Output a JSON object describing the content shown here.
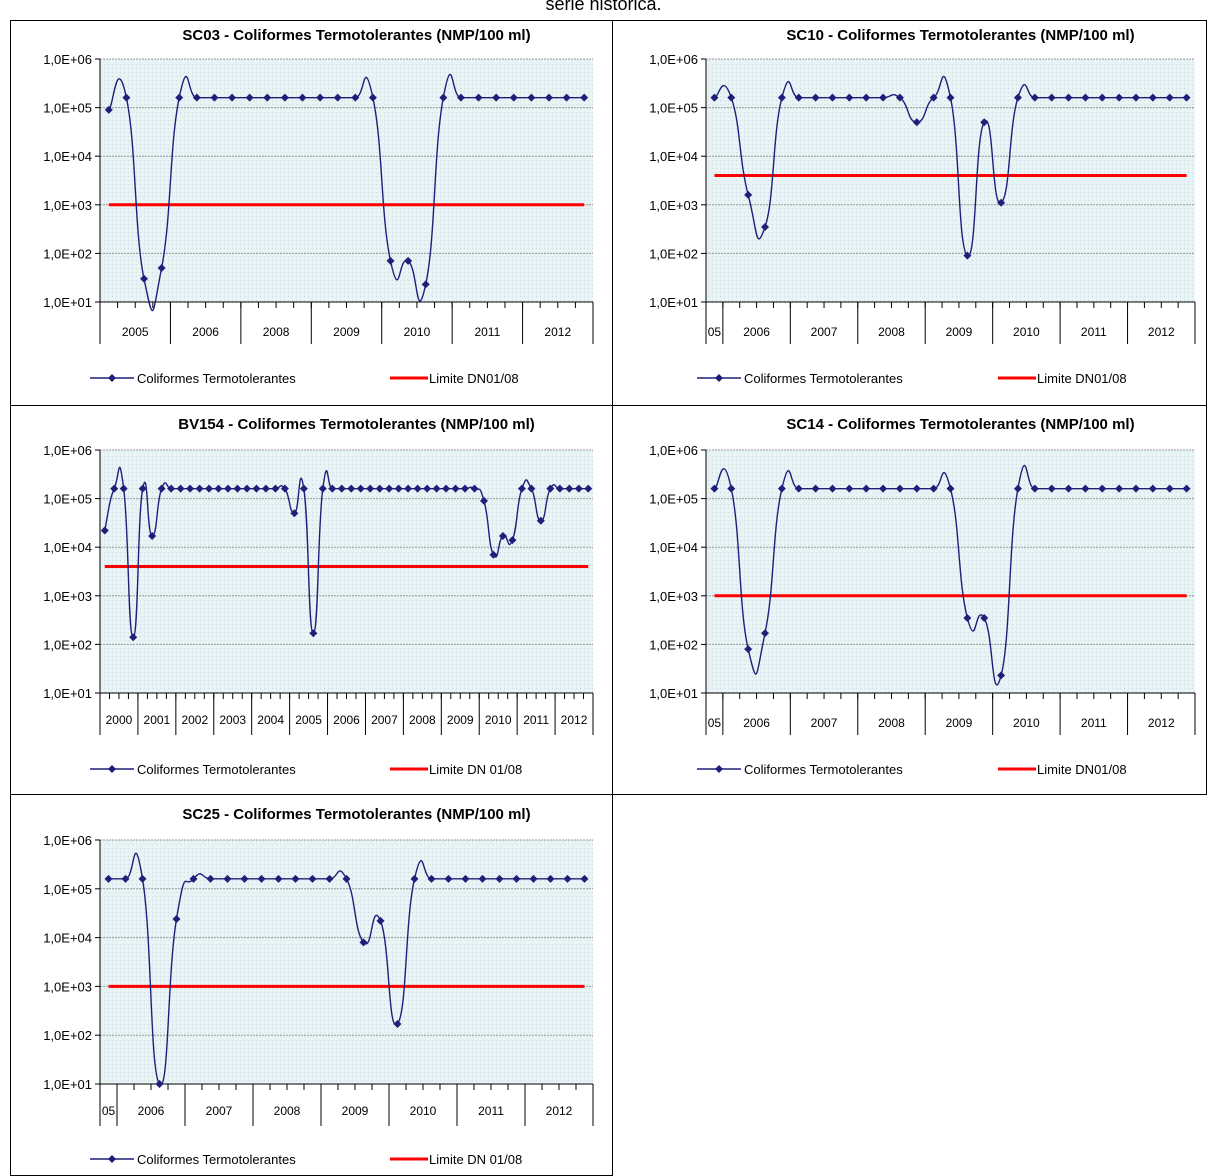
{
  "page": {
    "heading_fragment": "série histórica."
  },
  "colors": {
    "series": "#1F1F7A",
    "limit": "#FF0000",
    "grid": "#9A9A9A",
    "plot_bg": "#E8F3F5"
  },
  "chart_data": [
    {
      "type": "line",
      "title": "SC03 - Coliformes Termotolerantes (NMP/100 ml)",
      "yscale": "log",
      "ylim": [
        10,
        1000000
      ],
      "yticks": [
        "1,0E+01",
        "1,0E+02",
        "1,0E+03",
        "1,0E+04",
        "1,0E+05",
        "1,0E+06"
      ],
      "xgroups": [
        {
          "label": "2005",
          "n": 4
        },
        {
          "label": "2006",
          "n": 4
        },
        {
          "label": "2008",
          "n": 4
        },
        {
          "label": "2009",
          "n": 4
        },
        {
          "label": "2010",
          "n": 4
        },
        {
          "label": "2011",
          "n": 4
        },
        {
          "label": "2012",
          "n": 4
        }
      ],
      "series": [
        {
          "name": "Coliformes Termotolerantes",
          "values": [
            90000,
            160000,
            30,
            50,
            160000,
            160000,
            160000,
            160000,
            160000,
            160000,
            160000,
            160000,
            160000,
            160000,
            160000,
            160000,
            70,
            70,
            23,
            160000,
            160000,
            160000,
            160000,
            160000,
            160000,
            160000,
            160000,
            160000
          ]
        },
        {
          "name": "Limite DN01/08",
          "constant": 1000
        }
      ],
      "legend": "bottom"
    },
    {
      "type": "line",
      "title": "SC10 - Coliformes Termotolerantes (NMP/100 ml)",
      "yscale": "log",
      "ylim": [
        10,
        1000000
      ],
      "yticks": [
        "1,0E+01",
        "1,0E+02",
        "1,0E+03",
        "1,0E+04",
        "1,0E+05",
        "1,0E+06"
      ],
      "xgroups": [
        {
          "label": "05",
          "n": 1
        },
        {
          "label": "2006",
          "n": 4
        },
        {
          "label": "2007",
          "n": 4
        },
        {
          "label": "2008",
          "n": 4
        },
        {
          "label": "2009",
          "n": 4
        },
        {
          "label": "2010",
          "n": 4
        },
        {
          "label": "2011",
          "n": 4
        },
        {
          "label": "2012",
          "n": 4
        }
      ],
      "series": [
        {
          "name": "Coliformes Termotolerantes",
          "values": [
            160000,
            160000,
            1600,
            350,
            160000,
            160000,
            160000,
            160000,
            160000,
            160000,
            160000,
            160000,
            50000,
            160000,
            160000,
            90,
            50000,
            1100,
            160000,
            160000,
            160000,
            160000,
            160000,
            160000,
            160000,
            160000,
            160000,
            160000,
            160000
          ]
        },
        {
          "name": "Limite DN01/08",
          "constant": 4000
        }
      ],
      "legend": "bottom"
    },
    {
      "type": "line",
      "title": "BV154 - Coliformes Termotolerantes (NMP/100 ml)",
      "yscale": "log",
      "ylim": [
        10,
        1000000
      ],
      "yticks": [
        "1,0E+01",
        "1,0E+02",
        "1,0E+03",
        "1,0E+04",
        "1,0E+05",
        "1,0E+06"
      ],
      "xgroups": [
        {
          "label": "2000",
          "n": 4
        },
        {
          "label": "2001",
          "n": 4
        },
        {
          "label": "2002",
          "n": 4
        },
        {
          "label": "2003",
          "n": 4
        },
        {
          "label": "2004",
          "n": 4
        },
        {
          "label": "2005",
          "n": 4
        },
        {
          "label": "2006",
          "n": 4
        },
        {
          "label": "2007",
          "n": 4
        },
        {
          "label": "2008",
          "n": 4
        },
        {
          "label": "2009",
          "n": 4
        },
        {
          "label": "2010",
          "n": 4
        },
        {
          "label": "2011",
          "n": 4
        },
        {
          "label": "2012",
          "n": 4
        }
      ],
      "series": [
        {
          "name": "Coliformes Termotolerantes",
          "values": [
            22000,
            160000,
            160000,
            140,
            160000,
            17000,
            160000,
            160000,
            160000,
            160000,
            160000,
            160000,
            160000,
            160000,
            160000,
            160000,
            160000,
            160000,
            160000,
            160000,
            50000,
            160000,
            170,
            160000,
            160000,
            160000,
            160000,
            160000,
            160000,
            160000,
            160000,
            160000,
            160000,
            160000,
            160000,
            160000,
            160000,
            160000,
            160000,
            160000,
            90000,
            7000,
            17000,
            14000,
            160000,
            160000,
            35000,
            160000,
            160000,
            160000,
            160000,
            160000
          ]
        },
        {
          "name": "Limite DN 01/08",
          "constant": 4000
        }
      ],
      "legend": "bottom"
    },
    {
      "type": "line",
      "title": "SC14 - Coliformes Termotolerantes (NMP/100 ml)",
      "yscale": "log",
      "ylim": [
        10,
        1000000
      ],
      "yticks": [
        "1,0E+01",
        "1,0E+02",
        "1,0E+03",
        "1,0E+04",
        "1,0E+05",
        "1,0E+06"
      ],
      "xgroups": [
        {
          "label": "05",
          "n": 1
        },
        {
          "label": "2006",
          "n": 4
        },
        {
          "label": "2007",
          "n": 4
        },
        {
          "label": "2008",
          "n": 4
        },
        {
          "label": "2009",
          "n": 4
        },
        {
          "label": "2010",
          "n": 4
        },
        {
          "label": "2011",
          "n": 4
        },
        {
          "label": "2012",
          "n": 4
        }
      ],
      "series": [
        {
          "name": "Coliformes Termotolerantes",
          "values": [
            160000,
            160000,
            80,
            170,
            160000,
            160000,
            160000,
            160000,
            160000,
            160000,
            160000,
            160000,
            160000,
            160000,
            160000,
            350,
            350,
            23,
            160000,
            160000,
            160000,
            160000,
            160000,
            160000,
            160000,
            160000,
            160000,
            160000,
            160000
          ]
        },
        {
          "name": "Limite DN01/08",
          "constant": 1000
        }
      ],
      "legend": "bottom"
    },
    {
      "type": "line",
      "title": "SC25 - Coliformes Termotolerantes (NMP/100 ml)",
      "yscale": "log",
      "ylim": [
        10,
        1000000
      ],
      "yticks": [
        "1,0E+01",
        "1,0E+02",
        "1,0E+03",
        "1,0E+04",
        "1,0E+05",
        "1,0E+06"
      ],
      "xgroups": [
        {
          "label": "05",
          "n": 1
        },
        {
          "label": "2006",
          "n": 4
        },
        {
          "label": "2007",
          "n": 4
        },
        {
          "label": "2008",
          "n": 4
        },
        {
          "label": "2009",
          "n": 4
        },
        {
          "label": "2010",
          "n": 4
        },
        {
          "label": "2011",
          "n": 4
        },
        {
          "label": "2012",
          "n": 4
        }
      ],
      "series": [
        {
          "name": "Coliformes Termotolerantes",
          "values": [
            160000,
            160000,
            160000,
            10,
            24000,
            160000,
            160000,
            160000,
            160000,
            160000,
            160000,
            160000,
            160000,
            160000,
            160000,
            8000,
            22000,
            170,
            160000,
            160000,
            160000,
            160000,
            160000,
            160000,
            160000,
            160000,
            160000,
            160000,
            160000
          ]
        },
        {
          "name": "Limite DN 01/08",
          "constant": 1000
        }
      ],
      "legend": "bottom"
    }
  ]
}
